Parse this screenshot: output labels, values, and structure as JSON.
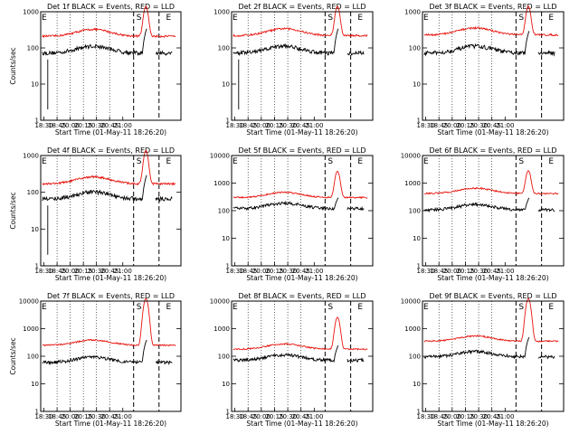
{
  "chart_data": [
    {
      "type": "line",
      "title": "Det 1f BLACK = Events, RED = LLD",
      "xlabel": "Start Time (01-May-11 18:26:20)",
      "ylabel": "Counts/sec",
      "ylim_log": [
        1,
        1000
      ],
      "yticks": [
        "1",
        "10",
        "100",
        "1000"
      ],
      "xticks": [
        "18:30",
        "18:45",
        "20:00",
        "20:15",
        "20:30",
        "20:45",
        "21:00"
      ],
      "markers": [
        "E",
        "S",
        "E"
      ],
      "red_base": 210,
      "red_peak": 1000,
      "black_base": 60,
      "black_peak": 350,
      "black_gap_start": true,
      "grid": "dotted-vertical",
      "legend": "none"
    },
    {
      "type": "line",
      "title": "Det 2f BLACK = Events, RED = LLD",
      "xlabel": "Start Time (01-May-11 18:26:20)",
      "ylabel": "",
      "ylim_log": [
        1,
        1000
      ],
      "yticks": [
        "1",
        "10",
        "100",
        "1000"
      ],
      "xticks": [
        "18:30",
        "18:45",
        "20:00",
        "20:15",
        "20:30",
        "20:45",
        "21:00"
      ],
      "markers": [
        "E",
        "S",
        "E"
      ],
      "red_base": 220,
      "red_peak": 1000,
      "black_base": 60,
      "black_peak": 350,
      "black_gap_start": true,
      "grid": "dotted-vertical",
      "legend": "none"
    },
    {
      "type": "line",
      "title": "Det 3f BLACK = Events, RED = LLD",
      "xlabel": "Start Time (01-May-11 18:26:20)",
      "ylabel": "",
      "ylim_log": [
        1,
        1000
      ],
      "yticks": [
        "1",
        "10",
        "100",
        "1000"
      ],
      "xticks": [
        "18:30",
        "18:45",
        "20:00",
        "20:15",
        "20:30",
        "20:45",
        "21:00"
      ],
      "markers": [
        "E",
        "S",
        "E"
      ],
      "red_base": 230,
      "red_peak": 1000,
      "black_base": 60,
      "black_peak": 300,
      "black_gap_start": false,
      "grid": "dotted-vertical",
      "legend": "none"
    },
    {
      "type": "line",
      "title": "Det 4f BLACK = Events, RED = LLD",
      "xlabel": "Start Time (01-May-11 18:26:20)",
      "ylabel": "Counts/sec",
      "ylim_log": [
        1,
        1000
      ],
      "yticks": [
        "1",
        "10",
        "100",
        "1000"
      ],
      "xticks": [
        "18:30",
        "18:45",
        "20:00",
        "20:15",
        "20:30",
        "20:45",
        "21:00"
      ],
      "markers": [
        "E",
        "S",
        "E"
      ],
      "red_base": 170,
      "red_peak": 1000,
      "black_base": 55,
      "black_peak": 300,
      "black_gap_start": true,
      "grid": "dotted-vertical",
      "legend": "none"
    },
    {
      "type": "line",
      "title": "Det 5f BLACK = Events, RED = LLD",
      "xlabel": "Start Time (01-May-11 18:26:20)",
      "ylabel": "",
      "ylim_log": [
        1,
        10000
      ],
      "yticks": [
        "1",
        "10",
        "100",
        "1000",
        "10000"
      ],
      "xticks": [
        "18:30",
        "18:45",
        "20:00",
        "20:15",
        "20:30",
        "20:45",
        "21:00"
      ],
      "markers": [
        "E",
        "S",
        "E"
      ],
      "red_base": 300,
      "red_peak": 2000,
      "black_base": 100,
      "black_peak": 300,
      "black_gap_start": false,
      "grid": "dotted-vertical",
      "legend": "none"
    },
    {
      "type": "line",
      "title": "Det 6f BLACK = Events, RED = LLD",
      "xlabel": "Start Time (01-May-11 18:26:20)",
      "ylabel": "",
      "ylim_log": [
        1,
        10000
      ],
      "yticks": [
        "1",
        "10",
        "100",
        "1000",
        "10000"
      ],
      "xticks": [
        "18:30",
        "18:45",
        "20:00",
        "20:15",
        "20:30",
        "20:45",
        "21:00"
      ],
      "markers": [
        "E",
        "S",
        "E"
      ],
      "red_base": 420,
      "red_peak": 2000,
      "black_base": 90,
      "black_peak": 300,
      "black_gap_start": false,
      "grid": "dotted-vertical",
      "legend": "none"
    },
    {
      "type": "line",
      "title": "Det 7f BLACK = Events, RED = LLD",
      "xlabel": "Start Time (01-May-11 18:26:20)",
      "ylabel": "Counts/sec",
      "ylim_log": [
        1,
        10000
      ],
      "yticks": [
        "1",
        "10",
        "100",
        "1000",
        "10000"
      ],
      "xticks": [
        "18:30",
        "18:45",
        "20:00",
        "20:15",
        "20:30",
        "20:45",
        "21:00"
      ],
      "markers": [
        "E",
        "S",
        "E"
      ],
      "red_base": 250,
      "red_peak": 10000,
      "black_base": 50,
      "black_peak": 400,
      "black_gap_start": false,
      "grid": "dotted-vertical",
      "legend": "none"
    },
    {
      "type": "line",
      "title": "Det 8f BLACK = Events, RED = LLD",
      "xlabel": "Start Time (01-May-11 18:26:20)",
      "ylabel": "",
      "ylim_log": [
        1,
        10000
      ],
      "yticks": [
        "1",
        "10",
        "100",
        "1000",
        "10000"
      ],
      "xticks": [
        "18:30",
        "18:45",
        "20:00",
        "20:15",
        "20:30",
        "20:45",
        "21:00"
      ],
      "markers": [
        "E",
        "S",
        "E"
      ],
      "red_base": 180,
      "red_peak": 2000,
      "black_base": 60,
      "black_peak": 250,
      "black_gap_start": false,
      "grid": "dotted-vertical",
      "legend": "none"
    },
    {
      "type": "line",
      "title": "Det 9f BLACK = Events, RED = LLD",
      "xlabel": "Start Time (01-May-11 18:26:20)",
      "ylabel": "",
      "ylim_log": [
        1,
        10000
      ],
      "yticks": [
        "1",
        "10",
        "100",
        "1000",
        "10000"
      ],
      "xticks": [
        "18:30",
        "18:45",
        "20:00",
        "20:15",
        "20:30",
        "20:45",
        "21:00"
      ],
      "markers": [
        "E",
        "S",
        "E"
      ],
      "red_base": 350,
      "red_peak": 10000,
      "black_base": 80,
      "black_peak": 500,
      "black_gap_start": false,
      "grid": "dotted-vertical",
      "legend": "none"
    }
  ],
  "colors": {
    "events": "#000000",
    "lld": "#e8140e",
    "axes": "#000000",
    "background": "#ffffff"
  }
}
